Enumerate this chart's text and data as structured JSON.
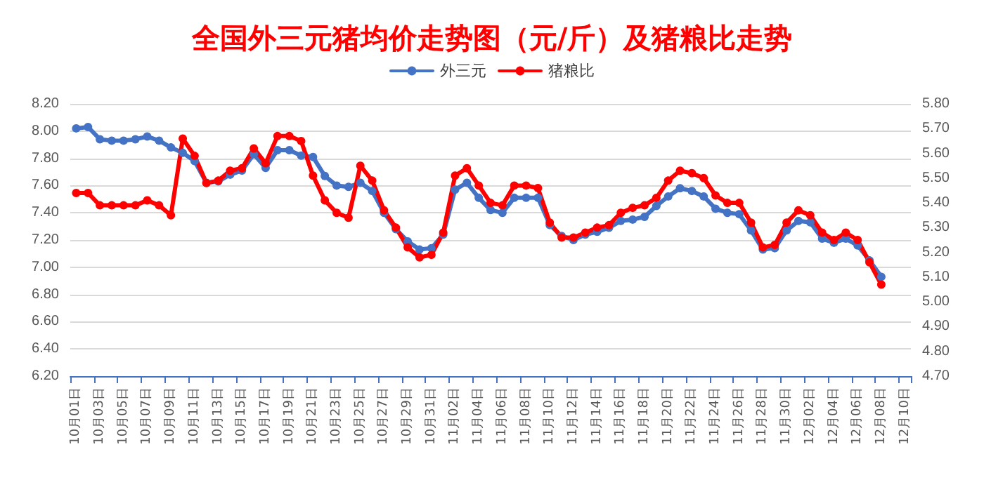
{
  "chart_data": {
    "type": "line",
    "title": "全国外三元猪均价走势图（元/斤）及猪粮比走势",
    "categories": [
      "10月01日",
      null,
      "10月03日",
      null,
      "10月05日",
      null,
      "10月07日",
      null,
      "10月09日",
      null,
      "10月11日",
      null,
      "10月13日",
      null,
      "10月15日",
      null,
      "10月17日",
      null,
      "10月19日",
      null,
      "10月21日",
      null,
      "10月23日",
      null,
      "10月25日",
      null,
      "10月27日",
      null,
      "10月29日",
      null,
      "10月31日",
      null,
      "11月02日",
      null,
      "11月04日",
      null,
      "11月06日",
      null,
      "11月08日",
      null,
      "11月10日",
      null,
      "11月12日",
      null,
      "11月14日",
      null,
      "11月16日",
      null,
      "11月18日",
      null,
      "11月20日",
      null,
      "11月22日",
      null,
      "11月24日",
      null,
      "11月26日",
      null,
      "11月28日",
      null,
      "11月30日",
      null,
      "12月02日",
      null,
      "12月04日",
      null,
      "12月06日",
      null,
      "12月08日",
      null,
      "12月10日"
    ],
    "series": [
      {
        "name": "外三元",
        "color": "#4472c4",
        "values": [
          8.02,
          8.03,
          7.94,
          7.93,
          7.93,
          7.94,
          7.96,
          7.93,
          7.88,
          7.84,
          7.78,
          7.62,
          7.63,
          7.68,
          7.71,
          7.83,
          7.73,
          7.86,
          7.86,
          7.82,
          7.81,
          7.67,
          7.6,
          7.59,
          7.62,
          7.56,
          7.4,
          7.28,
          7.19,
          7.13,
          7.14,
          7.24,
          7.57,
          7.62,
          7.51,
          7.42,
          7.4,
          7.51,
          7.51,
          7.51,
          7.31,
          7.23,
          7.2,
          7.24,
          7.26,
          7.29,
          7.34,
          7.35,
          7.37,
          7.45,
          7.52,
          7.58,
          7.56,
          7.52,
          7.43,
          7.4,
          7.39,
          7.27,
          7.13,
          7.14,
          7.27,
          7.34,
          7.33,
          7.21,
          7.18,
          7.21,
          7.16,
          7.05,
          6.93,
          null,
          null
        ]
      },
      {
        "name": "猪粮比",
        "color": "#ff0000",
        "axis": "y2",
        "values": [
          5.44,
          5.44,
          5.39,
          5.39,
          5.39,
          5.39,
          5.41,
          5.39,
          5.35,
          5.66,
          5.59,
          5.48,
          5.49,
          5.53,
          5.54,
          5.62,
          5.56,
          5.67,
          5.67,
          5.65,
          5.51,
          5.41,
          5.36,
          5.34,
          5.55,
          5.49,
          5.37,
          5.3,
          5.22,
          5.18,
          5.19,
          5.28,
          5.51,
          5.54,
          5.47,
          5.4,
          5.39,
          5.47,
          5.47,
          5.46,
          5.32,
          5.26,
          5.26,
          5.28,
          5.3,
          5.31,
          5.36,
          5.38,
          5.39,
          5.42,
          5.49,
          5.53,
          5.52,
          5.5,
          5.43,
          5.4,
          5.4,
          5.32,
          5.22,
          5.23,
          5.32,
          5.37,
          5.35,
          5.28,
          5.25,
          5.28,
          5.25,
          5.16,
          5.07,
          null,
          null
        ]
      }
    ],
    "ylim": [
      6.2,
      8.2
    ],
    "yticks": [
      {
        "value": 6.2,
        "label": "6.20"
      },
      {
        "value": 6.4,
        "label": "6.40"
      },
      {
        "value": 6.6,
        "label": "6.60"
      },
      {
        "value": 6.8,
        "label": "6.80"
      },
      {
        "value": 7.0,
        "label": "7.00"
      },
      {
        "value": 7.2,
        "label": "7.20"
      },
      {
        "value": 7.4,
        "label": "7.40"
      },
      {
        "value": 7.6,
        "label": "7.60"
      },
      {
        "value": 7.8,
        "label": "7.80"
      },
      {
        "value": 8.0,
        "label": "8.00"
      },
      {
        "value": 8.2,
        "label": "8.20"
      }
    ],
    "y2lim": [
      4.7,
      5.8
    ],
    "y2ticks": [
      {
        "value": 4.7,
        "label": "4.70"
      },
      {
        "value": 4.8,
        "label": "4.80"
      },
      {
        "value": 4.9,
        "label": "4.90"
      },
      {
        "value": 5.0,
        "label": "5.00"
      },
      {
        "value": 5.1,
        "label": "5.10"
      },
      {
        "value": 5.2,
        "label": "5.20"
      },
      {
        "value": 5.3,
        "label": "5.30"
      },
      {
        "value": 5.4,
        "label": "5.40"
      },
      {
        "value": 5.5,
        "label": "5.50"
      },
      {
        "value": 5.6,
        "label": "5.60"
      },
      {
        "value": 5.7,
        "label": "5.70"
      },
      {
        "value": 5.8,
        "label": "5.80"
      }
    ],
    "grid": "y",
    "legend": "top",
    "marker": "circle",
    "line_style": "solid"
  }
}
